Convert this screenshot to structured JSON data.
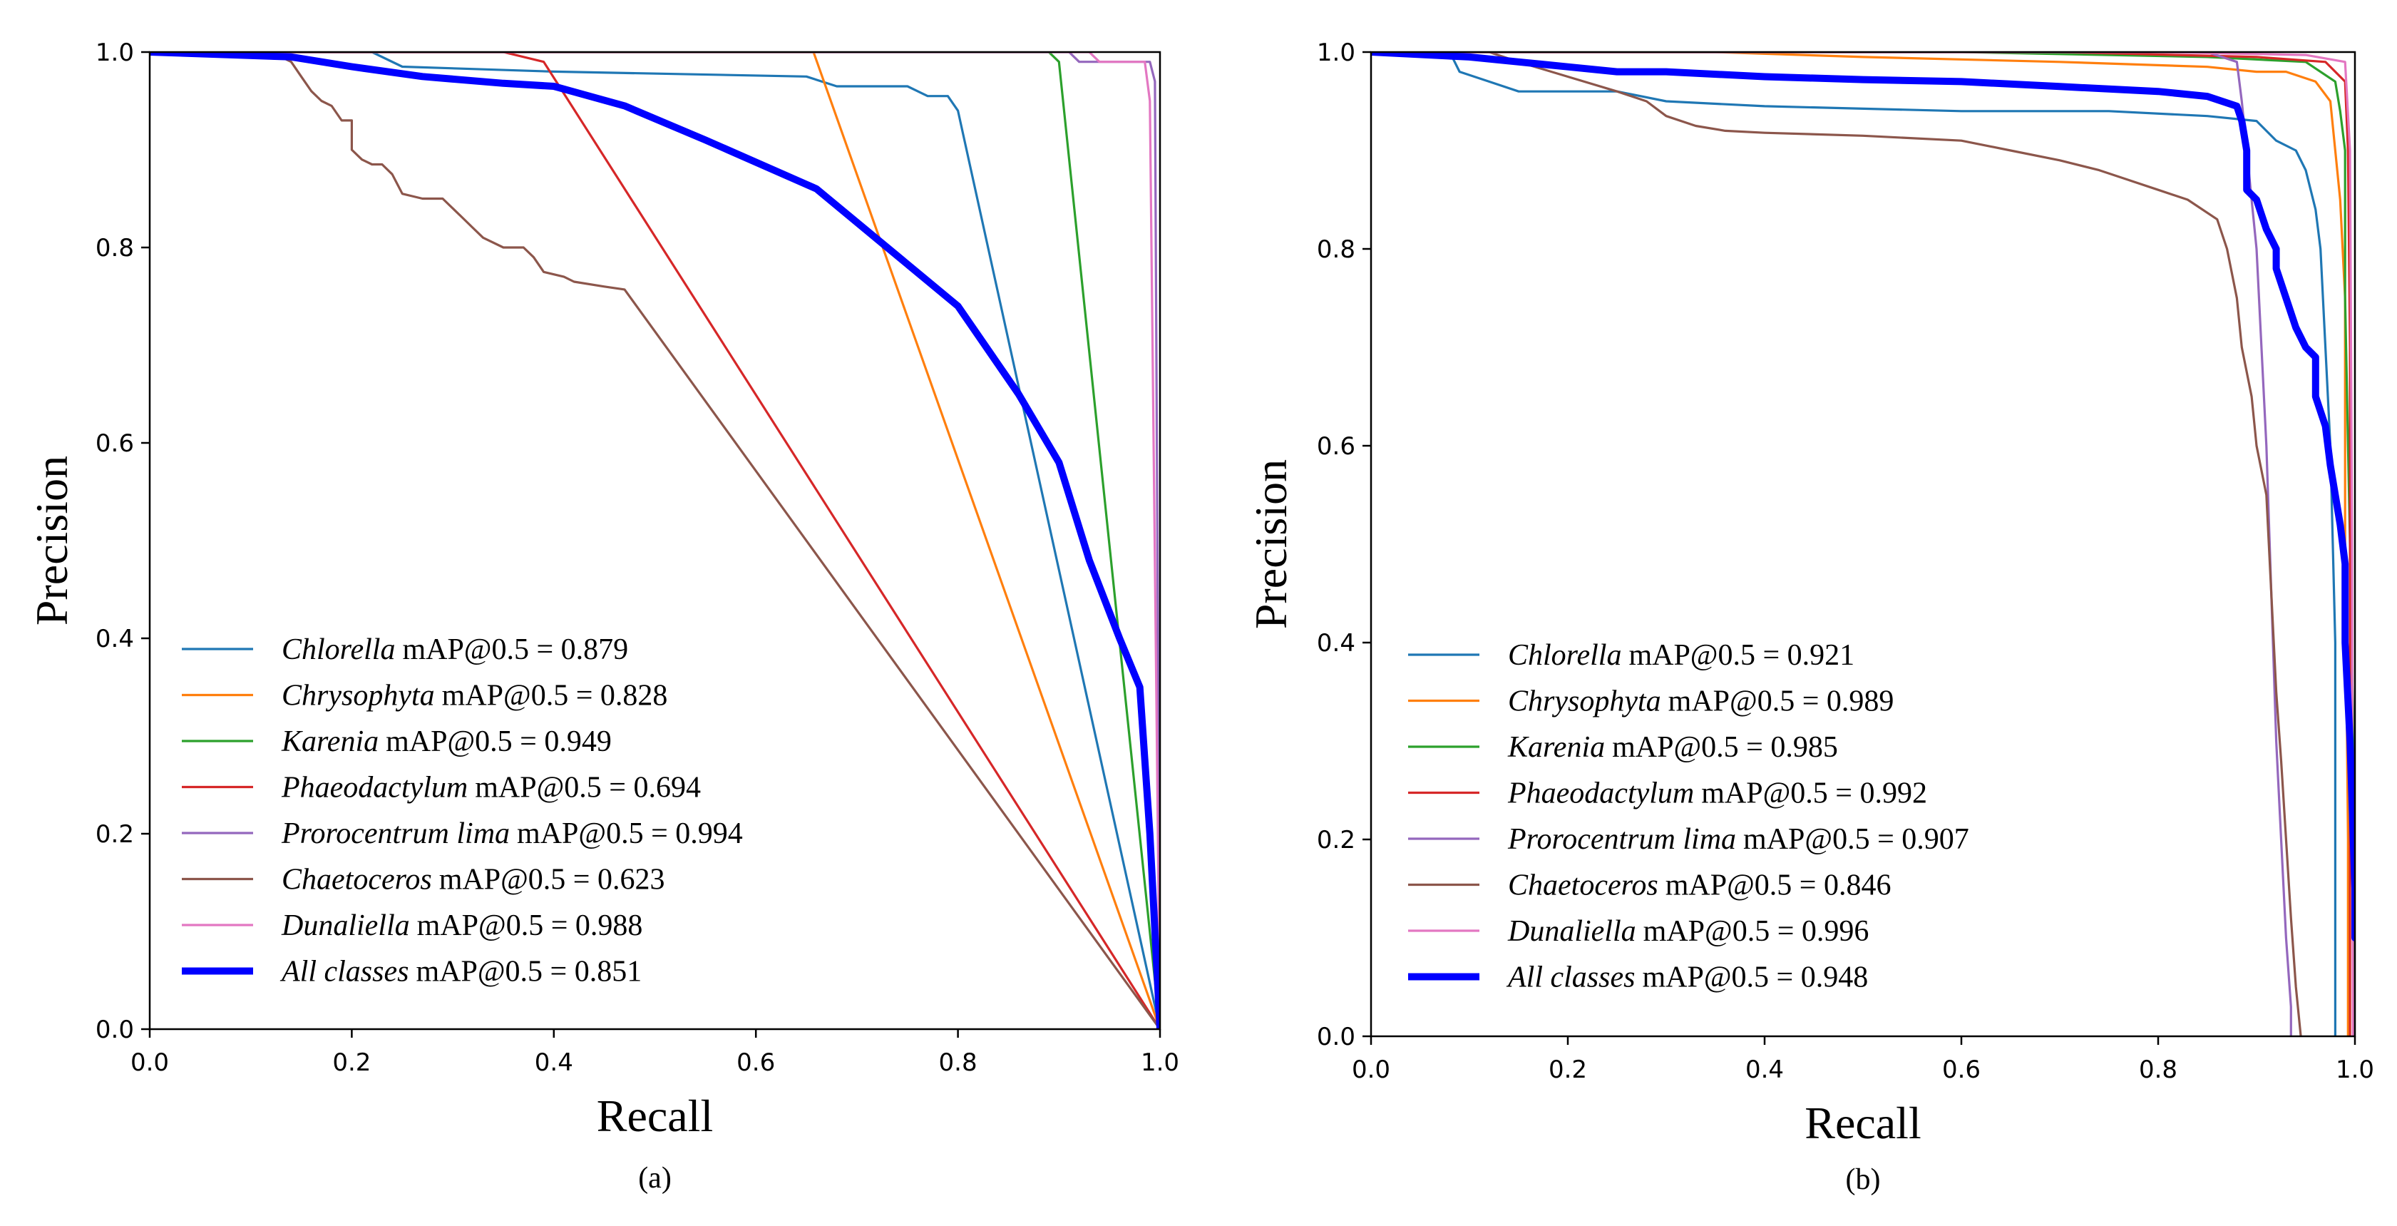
{
  "chart_data": [
    {
      "panel": "a",
      "type": "line",
      "caption": "(a)",
      "xlabel": "Recall",
      "ylabel": "Precision",
      "xlim": [
        0.0,
        1.0
      ],
      "ylim": [
        0.0,
        1.0
      ],
      "xticks": [
        "0.0",
        "0.2",
        "0.4",
        "0.6",
        "0.8",
        "1.0"
      ],
      "yticks": [
        "0.0",
        "0.2",
        "0.4",
        "0.6",
        "0.8",
        "1.0"
      ],
      "grid": false,
      "legend_position": "lower-left",
      "series": [
        {
          "name": "Chlorella",
          "metric": "mAP@0.5 = 0.879",
          "color": "#1f77b4",
          "emphasis": false,
          "points": [
            [
              0,
              1
            ],
            [
              0.22,
              1
            ],
            [
              0.25,
              0.985
            ],
            [
              0.4,
              0.98
            ],
            [
              0.65,
              0.975
            ],
            [
              0.68,
              0.965
            ],
            [
              0.75,
              0.965
            ],
            [
              0.77,
              0.955
            ],
            [
              0.79,
              0.955
            ],
            [
              0.8,
              0.94
            ],
            [
              1.0,
              0.0
            ]
          ]
        },
        {
          "name": "Chrysophyta",
          "metric": "mAP@0.5 = 0.828",
          "color": "#ff7f0e",
          "emphasis": false,
          "points": [
            [
              0,
              1
            ],
            [
              0.657,
              1
            ],
            [
              1.0,
              0.0
            ]
          ]
        },
        {
          "name": "Karenia",
          "metric": "mAP@0.5 = 0.949",
          "color": "#2ca02c",
          "emphasis": false,
          "points": [
            [
              0,
              1
            ],
            [
              0.89,
              1
            ],
            [
              0.9,
              0.99
            ],
            [
              1.0,
              0.0
            ]
          ]
        },
        {
          "name": "Phaeodactylum",
          "metric": "mAP@0.5 = 0.694",
          "color": "#d62728",
          "emphasis": false,
          "points": [
            [
              0,
              1
            ],
            [
              0.35,
              1
            ],
            [
              0.39,
              0.99
            ],
            [
              1.0,
              0.0
            ]
          ]
        },
        {
          "name": "Prorocentrum lima",
          "metric": "mAP@0.5 = 0.994",
          "color": "#9467bd",
          "emphasis": false,
          "points": [
            [
              0,
              1
            ],
            [
              0.91,
              1
            ],
            [
              0.92,
              0.99
            ],
            [
              0.99,
              0.99
            ],
            [
              0.995,
              0.97
            ],
            [
              1.0,
              0.0
            ]
          ]
        },
        {
          "name": "Chaetoceros",
          "metric": "mAP@0.5 = 0.623",
          "color": "#8c564b",
          "emphasis": false,
          "points": [
            [
              0,
              1
            ],
            [
              0.12,
              1
            ],
            [
              0.13,
              0.995
            ],
            [
              0.14,
              0.99
            ],
            [
              0.15,
              0.975
            ],
            [
              0.16,
              0.96
            ],
            [
              0.17,
              0.95
            ],
            [
              0.18,
              0.945
            ],
            [
              0.19,
              0.93
            ],
            [
              0.2,
              0.93
            ],
            [
              0.2,
              0.915
            ],
            [
              0.2,
              0.9
            ],
            [
              0.21,
              0.89
            ],
            [
              0.22,
              0.885
            ],
            [
              0.23,
              0.885
            ],
            [
              0.24,
              0.875
            ],
            [
              0.25,
              0.855
            ],
            [
              0.27,
              0.85
            ],
            [
              0.29,
              0.85
            ],
            [
              0.3,
              0.84
            ],
            [
              0.31,
              0.83
            ],
            [
              0.32,
              0.82
            ],
            [
              0.33,
              0.81
            ],
            [
              0.35,
              0.8
            ],
            [
              0.37,
              0.8
            ],
            [
              0.38,
              0.79
            ],
            [
              0.39,
              0.775
            ],
            [
              0.41,
              0.77
            ],
            [
              0.42,
              0.765
            ],
            [
              0.45,
              0.76
            ],
            [
              0.47,
              0.757
            ],
            [
              1.0,
              0.0
            ]
          ]
        },
        {
          "name": "Dunaliella",
          "metric": "mAP@0.5 = 0.988",
          "color": "#e377c2",
          "emphasis": false,
          "points": [
            [
              0,
              1
            ],
            [
              0.93,
              1
            ],
            [
              0.94,
              0.99
            ],
            [
              0.985,
              0.99
            ],
            [
              0.99,
              0.95
            ],
            [
              1.0,
              0.0
            ]
          ]
        },
        {
          "name": "All classes",
          "metric": "mAP@0.5 = 0.851",
          "color": "#0000ff",
          "emphasis": true,
          "points": [
            [
              0,
              1
            ],
            [
              0.14,
              0.995
            ],
            [
              0.2,
              0.985
            ],
            [
              0.27,
              0.975
            ],
            [
              0.35,
              0.968
            ],
            [
              0.4,
              0.965
            ],
            [
              0.47,
              0.945
            ],
            [
              0.55,
              0.91
            ],
            [
              0.66,
              0.86
            ],
            [
              0.73,
              0.8
            ],
            [
              0.8,
              0.74
            ],
            [
              0.86,
              0.65
            ],
            [
              0.9,
              0.58
            ],
            [
              0.93,
              0.48
            ],
            [
              0.96,
              0.4
            ],
            [
              0.98,
              0.35
            ],
            [
              0.99,
              0.2
            ],
            [
              1.0,
              0.0
            ]
          ]
        }
      ]
    },
    {
      "panel": "b",
      "type": "line",
      "caption": "(b)",
      "xlabel": "Recall",
      "ylabel": "Precision",
      "xlim": [
        0.0,
        1.0
      ],
      "ylim": [
        0.0,
        1.0
      ],
      "xticks": [
        "0.0",
        "0.2",
        "0.4",
        "0.6",
        "0.8",
        "1.0"
      ],
      "yticks": [
        "0.0",
        "0.2",
        "0.4",
        "0.6",
        "0.8",
        "1.0"
      ],
      "grid": false,
      "legend_position": "lower-left",
      "series": [
        {
          "name": "Chlorella",
          "metric": "mAP@0.5 = 0.921",
          "color": "#1f77b4",
          "emphasis": false,
          "points": [
            [
              0,
              1
            ],
            [
              0.08,
              1
            ],
            [
              0.09,
              0.98
            ],
            [
              0.12,
              0.97
            ],
            [
              0.15,
              0.96
            ],
            [
              0.25,
              0.96
            ],
            [
              0.3,
              0.95
            ],
            [
              0.4,
              0.945
            ],
            [
              0.6,
              0.94
            ],
            [
              0.75,
              0.94
            ],
            [
              0.85,
              0.935
            ],
            [
              0.9,
              0.93
            ],
            [
              0.92,
              0.91
            ],
            [
              0.94,
              0.9
            ],
            [
              0.95,
              0.88
            ],
            [
              0.96,
              0.84
            ],
            [
              0.965,
              0.8
            ],
            [
              0.97,
              0.7
            ],
            [
              0.975,
              0.6
            ],
            [
              0.98,
              0.4
            ],
            [
              0.98,
              0.0
            ]
          ]
        },
        {
          "name": "Chrysophyta",
          "metric": "mAP@0.5 = 0.989",
          "color": "#ff7f0e",
          "emphasis": false,
          "points": [
            [
              0,
              1
            ],
            [
              0.35,
              1
            ],
            [
              0.5,
              0.995
            ],
            [
              0.7,
              0.99
            ],
            [
              0.85,
              0.985
            ],
            [
              0.9,
              0.98
            ],
            [
              0.93,
              0.98
            ],
            [
              0.96,
              0.97
            ],
            [
              0.975,
              0.95
            ],
            [
              0.98,
              0.9
            ],
            [
              0.985,
              0.85
            ],
            [
              0.99,
              0.75
            ],
            [
              0.99,
              0.5
            ],
            [
              0.993,
              0.2
            ],
            [
              0.993,
              0.0
            ]
          ]
        },
        {
          "name": "Karenia",
          "metric": "mAP@0.5 = 0.985",
          "color": "#2ca02c",
          "emphasis": false,
          "points": [
            [
              0,
              1
            ],
            [
              0.6,
              1
            ],
            [
              0.85,
              0.995
            ],
            [
              0.95,
              0.99
            ],
            [
              0.98,
              0.97
            ],
            [
              0.985,
              0.94
            ],
            [
              0.99,
              0.9
            ],
            [
              0.99,
              0.75
            ],
            [
              0.995,
              0.5
            ],
            [
              1.0,
              0.2
            ],
            [
              1.0,
              0.0
            ]
          ]
        },
        {
          "name": "Phaeodactylum",
          "metric": "mAP@0.5 = 0.992",
          "color": "#d62728",
          "emphasis": false,
          "points": [
            [
              0,
              1
            ],
            [
              0.7,
              1
            ],
            [
              0.9,
              0.995
            ],
            [
              0.97,
              0.99
            ],
            [
              0.99,
              0.97
            ],
            [
              0.993,
              0.9
            ],
            [
              0.995,
              0.7
            ],
            [
              0.995,
              0.5
            ],
            [
              0.995,
              0.0
            ]
          ]
        },
        {
          "name": "Prorocentrum lima",
          "metric": "mAP@0.5 = 0.907",
          "color": "#9467bd",
          "emphasis": false,
          "points": [
            [
              0,
              1
            ],
            [
              0.85,
              1
            ],
            [
              0.88,
              0.99
            ],
            [
              0.885,
              0.95
            ],
            [
              0.89,
              0.9
            ],
            [
              0.9,
              0.8
            ],
            [
              0.91,
              0.6
            ],
            [
              0.915,
              0.45
            ],
            [
              0.92,
              0.3
            ],
            [
              0.925,
              0.2
            ],
            [
              0.93,
              0.1
            ],
            [
              0.935,
              0.03
            ],
            [
              0.935,
              0.0
            ]
          ]
        },
        {
          "name": "Chaetoceros",
          "metric": "mAP@0.5 = 0.846",
          "color": "#8c564b",
          "emphasis": false,
          "points": [
            [
              0,
              1
            ],
            [
              0.12,
              1
            ],
            [
              0.15,
              0.99
            ],
            [
              0.2,
              0.975
            ],
            [
              0.25,
              0.96
            ],
            [
              0.28,
              0.95
            ],
            [
              0.3,
              0.935
            ],
            [
              0.33,
              0.925
            ],
            [
              0.36,
              0.92
            ],
            [
              0.4,
              0.918
            ],
            [
              0.5,
              0.915
            ],
            [
              0.6,
              0.91
            ],
            [
              0.65,
              0.9
            ],
            [
              0.7,
              0.89
            ],
            [
              0.74,
              0.88
            ],
            [
              0.77,
              0.87
            ],
            [
              0.8,
              0.86
            ],
            [
              0.83,
              0.85
            ],
            [
              0.86,
              0.83
            ],
            [
              0.87,
              0.8
            ],
            [
              0.88,
              0.75
            ],
            [
              0.885,
              0.7
            ],
            [
              0.895,
              0.65
            ],
            [
              0.9,
              0.6
            ],
            [
              0.91,
              0.55
            ],
            [
              0.915,
              0.45
            ],
            [
              0.92,
              0.35
            ],
            [
              0.925,
              0.28
            ],
            [
              0.93,
              0.2
            ],
            [
              0.935,
              0.12
            ],
            [
              0.94,
              0.05
            ],
            [
              0.945,
              0.0
            ]
          ]
        },
        {
          "name": "Dunaliella",
          "metric": "mAP@0.5 = 0.996",
          "color": "#e377c2",
          "emphasis": false,
          "points": [
            [
              0,
              1
            ],
            [
              0.8,
              1
            ],
            [
              0.95,
              0.997
            ],
            [
              0.99,
              0.99
            ],
            [
              0.995,
              0.9
            ],
            [
              0.997,
              0.5
            ],
            [
              0.998,
              0.0
            ]
          ]
        },
        {
          "name": "All classes",
          "metric": "mAP@0.5 = 0.948",
          "color": "#0000ff",
          "emphasis": true,
          "points": [
            [
              0,
              1
            ],
            [
              0.1,
              0.995
            ],
            [
              0.15,
              0.99
            ],
            [
              0.2,
              0.985
            ],
            [
              0.25,
              0.98
            ],
            [
              0.3,
              0.98
            ],
            [
              0.4,
              0.975
            ],
            [
              0.5,
              0.972
            ],
            [
              0.6,
              0.97
            ],
            [
              0.7,
              0.965
            ],
            [
              0.8,
              0.96
            ],
            [
              0.85,
              0.955
            ],
            [
              0.88,
              0.945
            ],
            [
              0.885,
              0.93
            ],
            [
              0.89,
              0.9
            ],
            [
              0.89,
              0.86
            ],
            [
              0.9,
              0.85
            ],
            [
              0.91,
              0.82
            ],
            [
              0.92,
              0.8
            ],
            [
              0.92,
              0.78
            ],
            [
              0.93,
              0.75
            ],
            [
              0.94,
              0.72
            ],
            [
              0.95,
              0.7
            ],
            [
              0.96,
              0.69
            ],
            [
              0.96,
              0.65
            ],
            [
              0.97,
              0.62
            ],
            [
              0.975,
              0.58
            ],
            [
              0.98,
              0.55
            ],
            [
              0.985,
              0.52
            ],
            [
              0.99,
              0.48
            ],
            [
              0.99,
              0.4
            ],
            [
              0.995,
              0.3
            ],
            [
              1.0,
              0.15
            ],
            [
              1.0,
              0.1
            ]
          ]
        }
      ]
    }
  ]
}
